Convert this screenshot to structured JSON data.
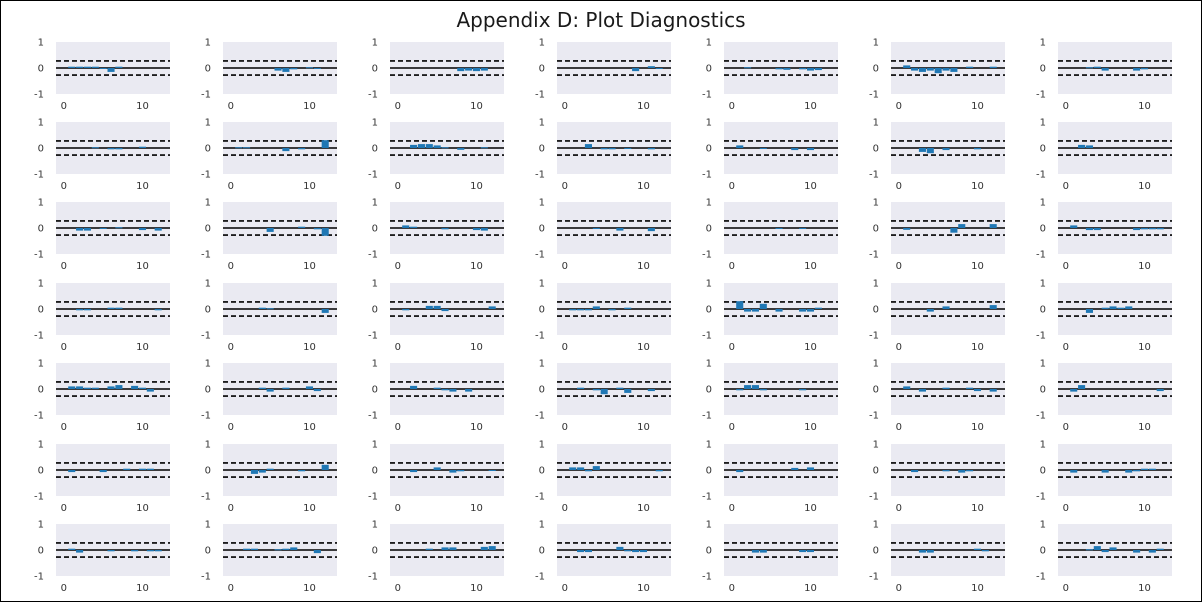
{
  "title": "Appendix D: Plot Diagnostics",
  "colors": {
    "panel_background": "#EAEAF2",
    "bar": "#1F77B4",
    "reference_lines": "#000000"
  },
  "chart_data": {
    "type": "bar",
    "layout": "7x7 small multiples",
    "grid": false,
    "ylim": [
      -1,
      1
    ],
    "yticks": [
      "-1",
      "0",
      "1"
    ],
    "xlim": [
      -1,
      13.5
    ],
    "xticks": [
      "0",
      "10"
    ],
    "reference_lines": {
      "solid": [
        0
      ],
      "dashed": [
        0.27,
        -0.27
      ]
    },
    "x": [
      1,
      2,
      3,
      4,
      5,
      6,
      7,
      8,
      9,
      10,
      11,
      12
    ],
    "panels": [
      [
        0.05,
        0.05,
        0.05,
        0.05,
        -0.03,
        -0.15,
        0.05,
        0,
        0,
        0,
        0,
        0
      ],
      [
        0,
        0,
        0,
        0,
        0,
        -0.1,
        -0.15,
        -0.05,
        0,
        0.03,
        -0.02,
        0
      ],
      [
        0,
        0,
        0,
        0,
        0,
        0,
        0,
        -0.12,
        -0.1,
        -0.12,
        -0.1,
        0
      ],
      [
        0,
        0,
        0,
        0,
        0,
        0,
        0,
        0,
        -0.12,
        0,
        0.07,
        -0.03
      ],
      [
        0,
        0.03,
        0,
        0,
        0,
        -0.05,
        -0.07,
        0,
        -0.05,
        -0.1,
        -0.08,
        0
      ],
      [
        0.1,
        -0.1,
        -0.15,
        -0.1,
        -0.2,
        -0.1,
        -0.15,
        0,
        0.05,
        0,
        0,
        0.05
      ],
      [
        0,
        0,
        0.03,
        0.05,
        -0.1,
        0,
        0,
        0,
        -0.1,
        -0.05,
        0,
        0
      ],
      [
        0,
        0,
        0,
        0.03,
        0,
        -0.05,
        -0.05,
        0,
        0,
        0.05,
        0,
        0
      ],
      [
        0.03,
        0.03,
        0,
        0,
        0,
        0,
        -0.12,
        0,
        -0.05,
        0,
        0,
        0.3
      ],
      [
        0,
        0.12,
        0.15,
        0.15,
        0.1,
        0.03,
        0,
        -0.07,
        0,
        0,
        0.03,
        0
      ],
      [
        0,
        0,
        0.15,
        0,
        -0.05,
        -0.05,
        0,
        -0.03,
        0,
        0,
        -0.05,
        0
      ],
      [
        0.1,
        0,
        0,
        -0.02,
        0,
        0,
        0,
        -0.08,
        0,
        -0.08,
        0,
        0
      ],
      [
        0,
        0,
        -0.15,
        -0.2,
        0,
        -0.08,
        0,
        0,
        0,
        -0.05,
        0,
        0
      ],
      [
        0,
        0.12,
        0.1,
        0,
        0,
        0,
        0,
        0,
        0,
        0,
        0,
        0
      ],
      [
        0,
        -0.1,
        -0.1,
        0,
        -0.03,
        0,
        0.03,
        0,
        0,
        -0.08,
        0,
        -0.1
      ],
      [
        0,
        0,
        0,
        0,
        -0.15,
        0,
        0,
        0,
        0.05,
        0,
        -0.05,
        -0.3
      ],
      [
        0.1,
        0.05,
        0,
        0,
        0,
        -0.05,
        0,
        0,
        0,
        -0.08,
        -0.1,
        0
      ],
      [
        0,
        0,
        0,
        -0.03,
        0,
        0,
        -0.1,
        0,
        0,
        0,
        -0.12,
        0
      ],
      [
        0,
        0,
        0,
        0,
        0,
        -0.03,
        0,
        0,
        -0.03,
        0,
        0,
        0
      ],
      [
        -0.07,
        0,
        0,
        0,
        0,
        0,
        -0.18,
        0.15,
        0,
        0,
        0,
        0.15
      ],
      [
        0.1,
        0,
        -0.08,
        -0.08,
        0,
        0,
        0,
        0,
        -0.08,
        -0.05,
        -0.05,
        -0.05
      ],
      [
        0,
        -0.05,
        -0.05,
        0,
        0,
        0.05,
        0.05,
        0,
        0,
        0,
        0,
        -0.05
      ],
      [
        0,
        0,
        0,
        0.05,
        0.03,
        0,
        0,
        0,
        0,
        0,
        0,
        -0.15
      ],
      [
        -0.05,
        0,
        0,
        0.12,
        0.12,
        -0.08,
        0,
        0,
        0,
        0,
        0,
        0.1
      ],
      [
        -0.05,
        -0.05,
        -0.05,
        0.1,
        0,
        -0.05,
        0,
        0.05,
        0,
        0,
        0,
        0
      ],
      [
        0.3,
        -0.1,
        -0.1,
        0.2,
        0,
        -0.1,
        0,
        0,
        -0.1,
        -0.1,
        0.05,
        0
      ],
      [
        0,
        0,
        0,
        -0.1,
        0,
        0.1,
        0,
        0,
        0,
        0,
        0,
        0.15
      ],
      [
        0,
        0,
        -0.15,
        0,
        0.05,
        0.1,
        0.05,
        0.1,
        0,
        0,
        0,
        0
      ],
      [
        0.1,
        0.1,
        0.05,
        0.05,
        0,
        0.1,
        0.15,
        0,
        0.12,
        0.05,
        -0.1,
        0
      ],
      [
        0,
        0,
        0,
        0.05,
        -0.1,
        0,
        0.05,
        0,
        0,
        0.1,
        -0.08,
        0
      ],
      [
        0,
        0.12,
        0,
        0,
        0.05,
        -0.05,
        -0.1,
        0,
        -0.1,
        0,
        0,
        0
      ],
      [
        0,
        0.05,
        0,
        -0.05,
        -0.2,
        0,
        0.05,
        -0.15,
        0,
        0,
        -0.08,
        0
      ],
      [
        -0.05,
        0.15,
        0.15,
        -0.05,
        0,
        0,
        0,
        0,
        -0.05,
        0,
        0,
        0
      ],
      [
        0.1,
        0,
        -0.1,
        0,
        0,
        0.05,
        0,
        0,
        0.05,
        -0.08,
        0,
        -0.1
      ],
      [
        -0.1,
        0.15,
        0,
        0,
        0,
        0,
        0,
        0,
        0,
        0,
        0,
        -0.08
      ],
      [
        -0.08,
        0,
        0,
        0,
        -0.08,
        0,
        0,
        0.05,
        0,
        0.05,
        0.05,
        0
      ],
      [
        0,
        0,
        -0.15,
        -0.1,
        0.05,
        0,
        0,
        0,
        -0.05,
        0,
        0,
        0.2
      ],
      [
        0,
        -0.08,
        0,
        0,
        0.1,
        0,
        -0.1,
        -0.05,
        0,
        0,
        0,
        -0.03
      ],
      [
        0.1,
        0.1,
        -0.05,
        0.15,
        0,
        0,
        0,
        0,
        0,
        0,
        0,
        -0.05
      ],
      [
        -0.08,
        0,
        0,
        0,
        0,
        0,
        0,
        0.08,
        0,
        0.1,
        0,
        0
      ],
      [
        0,
        -0.08,
        0,
        0,
        0,
        -0.05,
        0,
        -0.1,
        -0.05,
        0,
        0,
        0
      ],
      [
        -0.1,
        0,
        0,
        0,
        -0.1,
        0,
        0,
        -0.1,
        -0.05,
        0.05,
        0.05,
        0
      ],
      [
        0.05,
        -0.1,
        0,
        0,
        0,
        -0.05,
        0,
        0,
        -0.05,
        0,
        -0.05,
        -0.05
      ],
      [
        0,
        0.05,
        0.05,
        0,
        0,
        0.03,
        0.05,
        0.1,
        0,
        0,
        -0.12,
        0
      ],
      [
        0,
        0,
        0,
        0.05,
        0,
        0.1,
        0.1,
        0,
        0,
        0,
        0.12,
        0.15
      ],
      [
        0,
        -0.08,
        -0.08,
        0,
        0,
        0,
        0.12,
        -0.05,
        -0.08,
        -0.08,
        0,
        0
      ],
      [
        0,
        0,
        -0.1,
        -0.1,
        0,
        0,
        0,
        0,
        -0.08,
        -0.08,
        0,
        0
      ],
      [
        0,
        0,
        -0.1,
        -0.1,
        0,
        0,
        0,
        0,
        0,
        0.05,
        -0.05,
        0
      ],
      [
        0,
        0,
        0.03,
        0.15,
        -0.08,
        0.1,
        0,
        0,
        -0.1,
        0,
        -0.1,
        0.05
      ]
    ]
  }
}
